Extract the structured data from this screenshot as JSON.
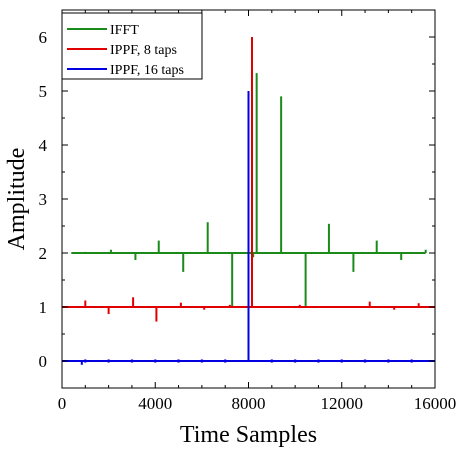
{
  "chart_data": {
    "type": "line",
    "xlabel": "Time Samples",
    "ylabel": "Amplitude",
    "xlim": [
      0,
      16000
    ],
    "ylim": [
      -0.5,
      6.5
    ],
    "xticks": [
      0,
      4000,
      8000,
      12000,
      16000
    ],
    "yticks": [
      0,
      1,
      2,
      3,
      4,
      5,
      6
    ],
    "grid": false,
    "legend_position": "top-left",
    "series": [
      {
        "name": "IFFT",
        "color": "#1a8a1a",
        "baseline": 2,
        "x_range": [
          400,
          15600
        ],
        "spikes": [
          {
            "x": 1000,
            "y": 2.02
          },
          {
            "x": 2100,
            "y": 2.06
          },
          {
            "x": 3150,
            "y": 1.87
          },
          {
            "x": 4150,
            "y": 2.23
          },
          {
            "x": 5200,
            "y": 1.65
          },
          {
            "x": 6250,
            "y": 2.57
          },
          {
            "x": 7300,
            "y": 1.0
          },
          {
            "x": 8200,
            "y": 1.92
          },
          {
            "x": 8350,
            "y": 5.33
          },
          {
            "x": 9400,
            "y": 4.9
          },
          {
            "x": 10450,
            "y": 1.02
          },
          {
            "x": 11450,
            "y": 2.54
          },
          {
            "x": 12500,
            "y": 1.65
          },
          {
            "x": 13500,
            "y": 2.23
          },
          {
            "x": 14550,
            "y": 1.87
          },
          {
            "x": 15600,
            "y": 2.06
          }
        ]
      },
      {
        "name": "IPPF, 8 taps",
        "color": "#e00000",
        "baseline": 1,
        "x_range": [
          0,
          16000
        ],
        "spikes": [
          {
            "x": 1000,
            "y": 1.12
          },
          {
            "x": 2000,
            "y": 0.87
          },
          {
            "x": 3050,
            "y": 1.18
          },
          {
            "x": 4050,
            "y": 0.73
          },
          {
            "x": 5100,
            "y": 1.08
          },
          {
            "x": 6100,
            "y": 0.95
          },
          {
            "x": 7200,
            "y": 1.04
          },
          {
            "x": 8150,
            "y": 6.0
          },
          {
            "x": 10200,
            "y": 1.04
          },
          {
            "x": 13200,
            "y": 1.1
          },
          {
            "x": 14250,
            "y": 0.95
          },
          {
            "x": 15300,
            "y": 1.07
          }
        ]
      },
      {
        "name": "IPPF, 16 taps",
        "color": "#0000e0",
        "baseline": 0,
        "x_range": [
          0,
          16000
        ],
        "spikes": [
          {
            "x": 850,
            "y": -0.07
          },
          {
            "x": 8000,
            "y": 5.0
          }
        ],
        "dots": [
          1000,
          2000,
          3000,
          4000,
          5000,
          6000,
          7000,
          9000,
          10000,
          11000,
          12000,
          13000,
          14000,
          15000
        ]
      }
    ]
  }
}
